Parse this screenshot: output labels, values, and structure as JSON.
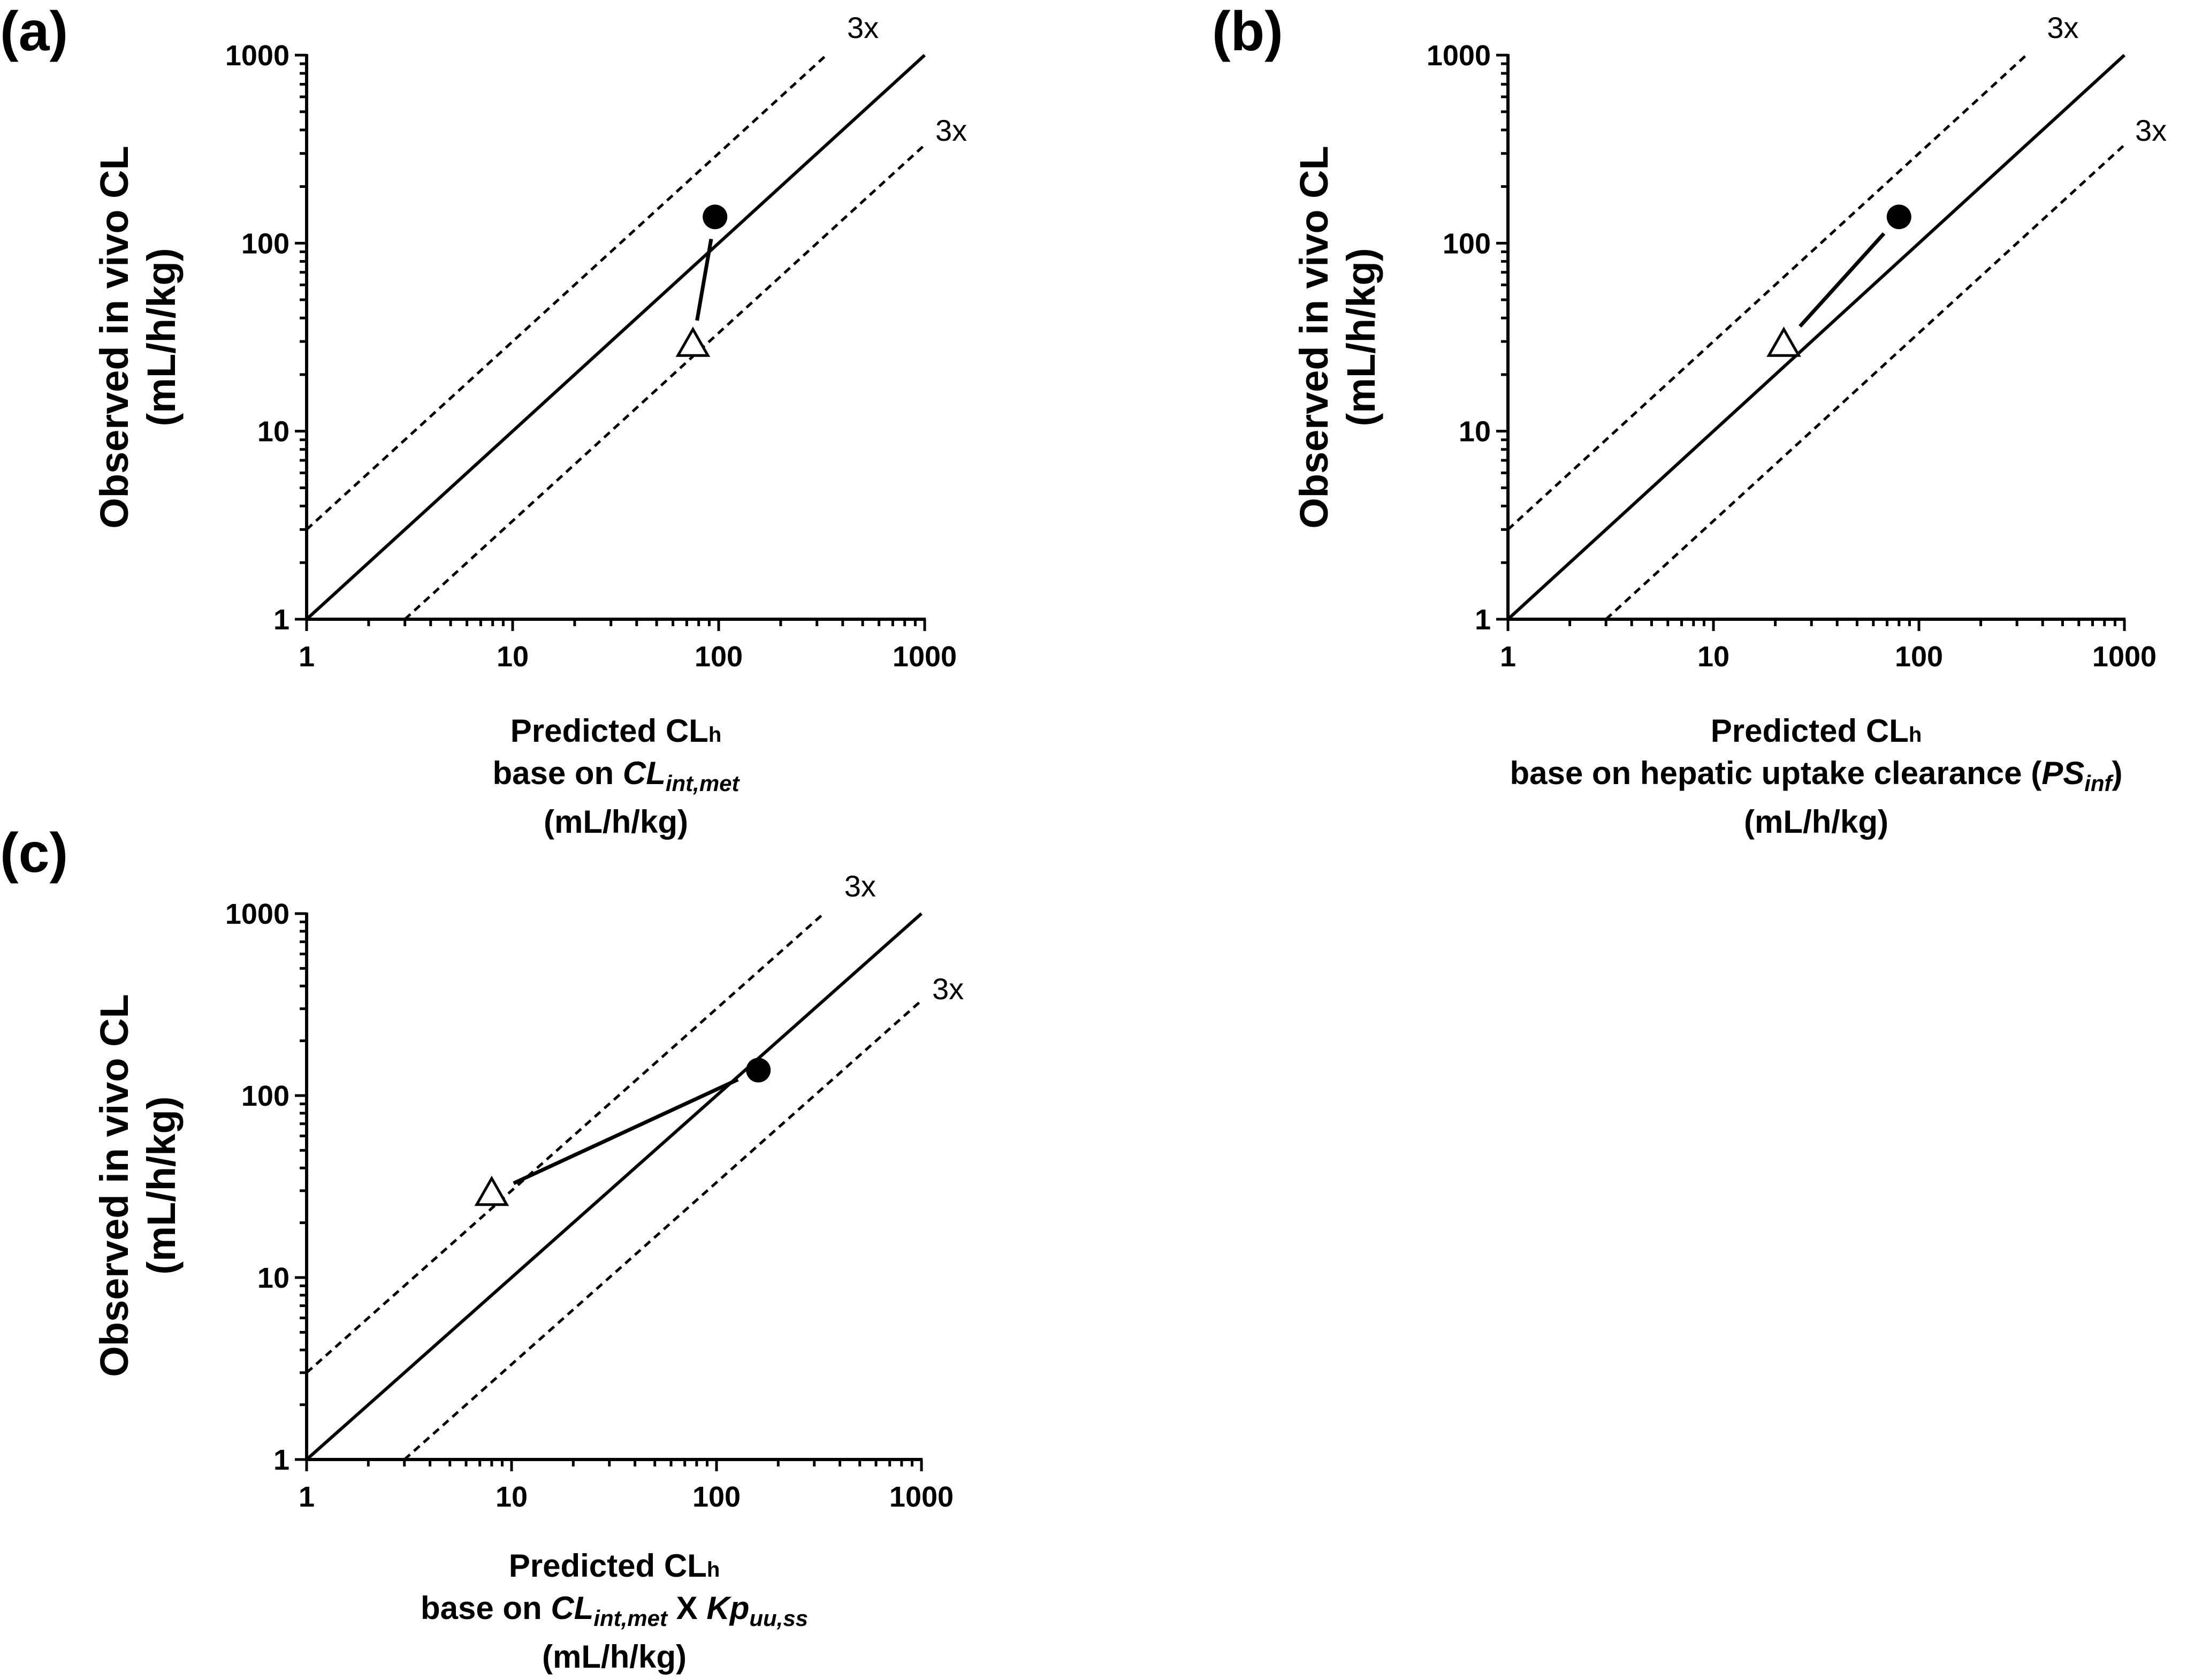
{
  "chart_data": [
    {
      "type": "scatter",
      "panel_label": "(a)",
      "ylabel_line1": "Observed in vivo CL",
      "ylabel_line2": "(mL/h/kg)",
      "xlabel_line1": "Predicted CL",
      "xlabel_sub": "h",
      "xlabel_line2_prefix": "base on ",
      "xlabel_line2_italic": "CL",
      "xlabel_line2_italic_sub": "int,met",
      "xlabel_line2_mid": "",
      "xlabel_line2_italic2": "",
      "xlabel_line2_italic2_sub": "",
      "xlabel_line2_suffix": "",
      "xlabel_line3": "(mL/h/kg)",
      "xscale": "log",
      "yscale": "log",
      "xlim": [
        1,
        1000
      ],
      "ylim": [
        1,
        1000
      ],
      "xticks": [
        "1",
        "10",
        "100",
        "1000"
      ],
      "yticks": [
        "1",
        "10",
        "100",
        "1000"
      ],
      "fold_label_upper": "3x",
      "fold_label_lower": "3x",
      "points": [
        {
          "marker": "filled-circle",
          "x": 96,
          "y": 138
        },
        {
          "marker": "open-triangle",
          "x": 75,
          "y": 29
        }
      ]
    },
    {
      "type": "scatter",
      "panel_label": "(b)",
      "ylabel_line1": "Observed in vivo CL",
      "ylabel_line2": "(mL/h/kg)",
      "xlabel_line1": "Predicted CL",
      "xlabel_sub": "h",
      "xlabel_line2_prefix": "base on hepatic uptake clearance (",
      "xlabel_line2_italic": "PS",
      "xlabel_line2_italic_sub": "inf",
      "xlabel_line2_mid": "",
      "xlabel_line2_italic2": "",
      "xlabel_line2_italic2_sub": "",
      "xlabel_line2_suffix": ")",
      "xlabel_line3": "(mL/h/kg)",
      "xscale": "log",
      "yscale": "log",
      "xlim": [
        1,
        1000
      ],
      "ylim": [
        1,
        1000
      ],
      "xticks": [
        "1",
        "10",
        "100",
        "1000"
      ],
      "yticks": [
        "1",
        "10",
        "100",
        "1000"
      ],
      "fold_label_upper": "3x",
      "fold_label_lower": "3x",
      "points": [
        {
          "marker": "filled-circle",
          "x": 80,
          "y": 138
        },
        {
          "marker": "open-triangle",
          "x": 22,
          "y": 29
        }
      ]
    },
    {
      "type": "scatter",
      "panel_label": "(c)",
      "ylabel_line1": "Observed in vivo CL",
      "ylabel_line2": "(mL/h/kg)",
      "xlabel_line1": "Predicted CL",
      "xlabel_sub": "h",
      "xlabel_line2_prefix": "base on ",
      "xlabel_line2_italic": "CL",
      "xlabel_line2_italic_sub": "int,met",
      "xlabel_line2_mid": " X ",
      "xlabel_line2_italic2": "Kp",
      "xlabel_line2_italic2_sub": "uu,ss",
      "xlabel_line2_suffix": "",
      "xlabel_line3": "(mL/h/kg)",
      "xscale": "log",
      "yscale": "log",
      "xlim": [
        1,
        1000
      ],
      "ylim": [
        1,
        1000
      ],
      "xticks": [
        "1",
        "10",
        "100",
        "1000"
      ],
      "yticks": [
        "1",
        "10",
        "100",
        "1000"
      ],
      "fold_label_upper": "3x",
      "fold_label_lower": "3x",
      "points": [
        {
          "marker": "filled-circle",
          "x": 160,
          "y": 138
        },
        {
          "marker": "open-triangle",
          "x": 8,
          "y": 29
        }
      ]
    }
  ]
}
